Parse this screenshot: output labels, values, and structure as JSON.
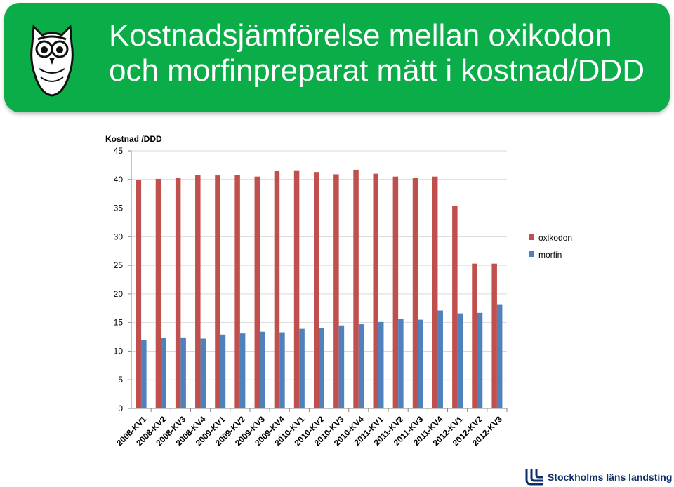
{
  "header": {
    "title": "Kostnadsjämförelse mellan oxikodon och morfinpreparat mätt i kostnad/DDD",
    "background_color": "#0bad48",
    "owl_icon": "owl-icon"
  },
  "chart_data": {
    "type": "bar",
    "ylabel": "Kostnad /DDD",
    "xlabel": "",
    "ylim": [
      0,
      45
    ],
    "yticks": [
      "0",
      "5",
      "10",
      "15",
      "20",
      "25",
      "30",
      "35",
      "40",
      "45"
    ],
    "grid": true,
    "legend_position": "right",
    "categories": [
      "2008-KV1",
      "2008-KV2",
      "2008-KV3",
      "2008-KV4",
      "2009-KV1",
      "2009-KV2",
      "2009-KV3",
      "2009-KV4",
      "2010-KV1",
      "2010-KV2",
      "2010-KV3",
      "2010-KV4",
      "2011-KV1",
      "2011-KV2",
      "2011-KV3",
      "2011-KV4",
      "2012-KV1",
      "2012-KV2",
      "2012-KV3"
    ],
    "series": [
      {
        "name": "oxikodon",
        "color": "#c0504d",
        "values": [
          39.9,
          40.1,
          40.3,
          40.8,
          40.7,
          40.8,
          40.5,
          41.5,
          41.6,
          41.3,
          40.9,
          41.7,
          41.0,
          40.5,
          40.3,
          40.5,
          35.4,
          25.3,
          25.3
        ]
      },
      {
        "name": "morfin",
        "color": "#4f81bd",
        "values": [
          12.0,
          12.3,
          12.4,
          12.2,
          12.9,
          13.1,
          13.4,
          13.3,
          13.9,
          14.0,
          14.5,
          14.7,
          15.1,
          15.6,
          15.5,
          17.1,
          16.6,
          16.7,
          18.2
        ]
      }
    ]
  },
  "footer": {
    "logo_text": "Stockholms läns landsting",
    "logo_icon": "sll-logo-icon"
  }
}
